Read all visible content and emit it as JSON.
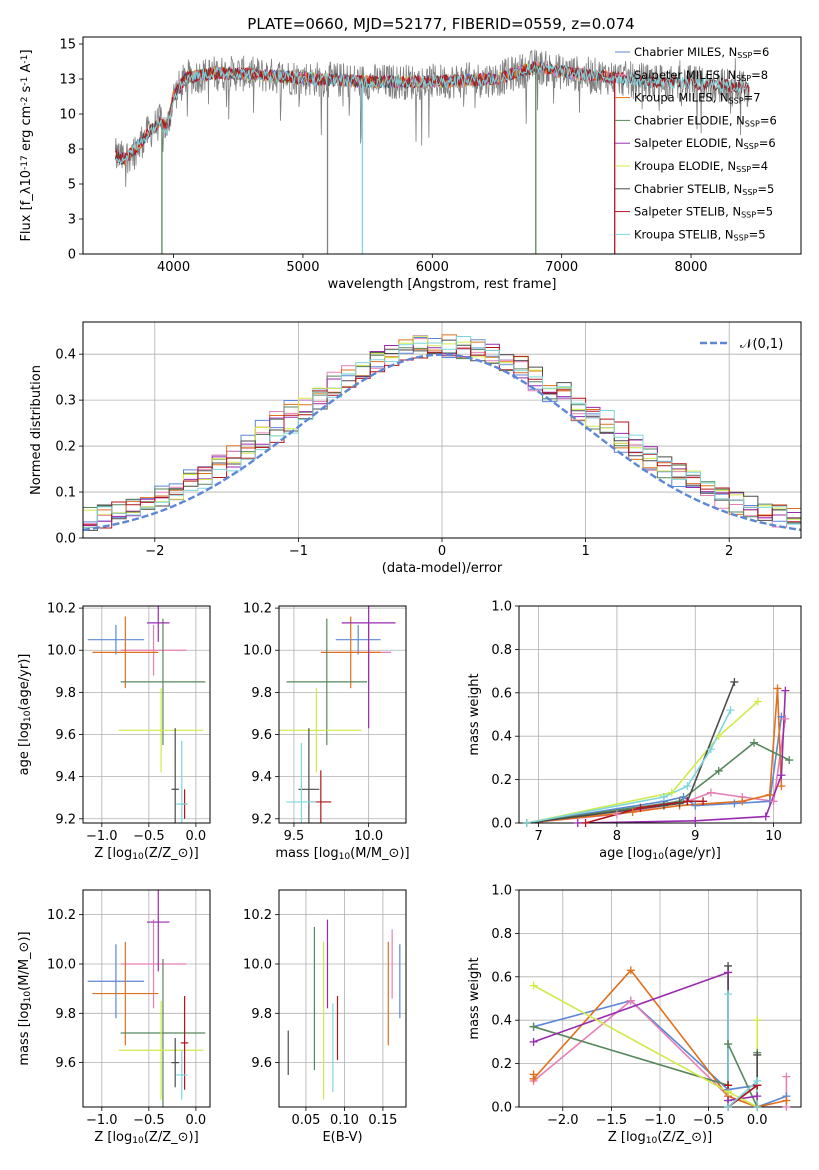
{
  "figure": {
    "title": "PLATE=0660, MJD=52177, FIBERID=0559, z=0.074"
  },
  "colors": {
    "Chabrier MILES": "#5b87d6",
    "Salpeter MILES": "#e77fb5",
    "Kroupa MILES": "#e0701c",
    "Chabrier ELODIE": "#57875c",
    "Salpeter ELODIE": "#9a2bb0",
    "Kroupa ELODIE": "#d0ea4a",
    "Chabrier STELIB": "#4c4c4c",
    "Salpeter STELIB": "#b5141d",
    "Kroupa STELIB": "#7ed6dc",
    "data_spectrum": "#808080"
  },
  "chart_data": [
    {
      "id": "spectrum",
      "type": "line",
      "xlabel": "wavelength [Angstrom, rest frame]",
      "ylabel": "Flux [f$_\\lambda$10$^{-17}$ erg cm$^{-2}$ s$^{-1}$ A$^{-1}$]",
      "xlim": [
        3300,
        8850
      ],
      "ylim": [
        0,
        15.5
      ],
      "xticks": [
        4000,
        5000,
        6000,
        7000,
        8000
      ],
      "yticks": [
        0.0,
        2.5,
        5.0,
        7.5,
        10.0,
        12.5,
        15.0
      ],
      "grid": false,
      "legend_position": "top-right",
      "legend": [
        {
          "model": "Chabrier MILES",
          "label": "Chabrier MILES, N$_{SSP}$=6"
        },
        {
          "model": "Salpeter MILES",
          "label": "Salpeter MILES, N$_{SSP}$=8"
        },
        {
          "model": "Kroupa MILES",
          "label": "Kroupa MILES, N$_{SSP}$=7"
        },
        {
          "model": "Chabrier ELODIE",
          "label": "Chabrier ELODIE, N$_{SSP}$=6"
        },
        {
          "model": "Salpeter ELODIE",
          "label": "Salpeter ELODIE, N$_{SSP}$=6"
        },
        {
          "model": "Kroupa ELODIE",
          "label": "Kroupa ELODIE, N$_{SSP}$=4"
        },
        {
          "model": "Chabrier STELIB",
          "label": "Chabrier STELIB, N$_{SSP}$=5"
        },
        {
          "model": "Salpeter STELIB",
          "label": "Salpeter STELIB, N$_{SSP}$=5"
        },
        {
          "model": "Kroupa STELIB",
          "label": "Kroupa STELIB, N$_{SSP}$=5"
        }
      ],
      "continuum": [
        [
          3550,
          7.0
        ],
        [
          3620,
          6.8
        ],
        [
          3700,
          7.5
        ],
        [
          3800,
          8.6
        ],
        [
          3900,
          9.5
        ],
        [
          3950,
          8.9
        ],
        [
          4000,
          11.3
        ],
        [
          4100,
          12.6
        ],
        [
          4300,
          12.9
        ],
        [
          4500,
          12.9
        ],
        [
          4800,
          12.7
        ],
        [
          5100,
          12.5
        ],
        [
          5500,
          12.3
        ],
        [
          6000,
          12.3
        ],
        [
          6500,
          12.5
        ],
        [
          6800,
          13.4
        ],
        [
          7000,
          13.0
        ],
        [
          7400,
          12.6
        ],
        [
          7700,
          12.3
        ],
        [
          8000,
          12.2
        ],
        [
          8300,
          12.0
        ],
        [
          8450,
          11.8
        ]
      ],
      "model_ranges": [
        {
          "model": "Kroupa ELODIE",
          "x": [
            3900,
            6800
          ]
        },
        {
          "model": "Salpeter ELODIE",
          "x": [
            3900,
            6800
          ]
        },
        {
          "model": "Chabrier ELODIE",
          "x": [
            3900,
            6800
          ]
        },
        {
          "model": "Chabrier MILES",
          "x": [
            3550,
            7400
          ]
        },
        {
          "model": "Salpeter MILES",
          "x": [
            3550,
            7400
          ]
        },
        {
          "model": "Kroupa MILES",
          "x": [
            3550,
            7400
          ]
        },
        {
          "model": "Chabrier STELIB",
          "x": [
            3550,
            8450
          ]
        },
        {
          "model": "Salpeter STELIB",
          "x": [
            3550,
            8450
          ]
        },
        {
          "model": "Kroupa STELIB",
          "x": [
            3550,
            8450
          ]
        }
      ],
      "drops": [
        {
          "x": 3910,
          "color": "Chabrier ELODIE"
        },
        {
          "x": 5190,
          "color": "data_spectrum"
        },
        {
          "x": 5460,
          "color": "Kroupa STELIB"
        },
        {
          "x": 6800,
          "color": "Chabrier ELODIE"
        },
        {
          "x": 7410,
          "color": "Salpeter STELIB"
        }
      ]
    },
    {
      "id": "residuals",
      "type": "histogram",
      "xlabel": "(data-model)/error",
      "ylabel": "Normed distribution",
      "xlim": [
        -2.5,
        2.5
      ],
      "ylim": [
        0,
        0.47
      ],
      "xticks": [
        -2,
        -1,
        0,
        1,
        2
      ],
      "yticks": [
        0.0,
        0.1,
        0.2,
        0.3,
        0.4
      ],
      "grid": true,
      "legend_position": "top-right",
      "normal_label": "$\\mathcal{N}(0,1)$",
      "normal_color": "#5b87d6",
      "bins": [
        -2.5,
        -2.4,
        -2.3,
        -2.2,
        -2.1,
        -2.0,
        -1.9,
        -1.8,
        -1.7,
        -1.6,
        -1.5,
        -1.4,
        -1.3,
        -1.2,
        -1.1,
        -1.0,
        -0.9,
        -0.8,
        -0.7,
        -0.6,
        -0.5,
        -0.4,
        -0.3,
        -0.2,
        -0.1,
        0.0,
        0.1,
        0.2,
        0.3,
        0.4,
        0.5,
        0.6,
        0.7,
        0.8,
        0.9,
        1.0,
        1.1,
        1.2,
        1.3,
        1.4,
        1.5,
        1.6,
        1.7,
        1.8,
        1.9,
        2.0,
        2.1,
        2.2,
        2.3,
        2.4,
        2.5
      ],
      "amplitude_scale": 1.0
    },
    {
      "id": "age-vs-Z",
      "type": "errorbar",
      "xlabel": "Z [log$_{10}$(Z/Z$_\\odot$)]",
      "ylabel": "age  [log$_{10}$(age/yr)]",
      "xlim": [
        -1.2,
        0.15
      ],
      "ylim": [
        9.18,
        10.21
      ],
      "xticks": [
        -1.0,
        -0.5,
        0.0
      ],
      "yticks": [
        9.2,
        9.4,
        9.6,
        9.8,
        10.0,
        10.2
      ],
      "grid": true,
      "points": [
        {
          "model": "Chabrier MILES",
          "x": -0.85,
          "xerr": 0.3,
          "y": 10.05,
          "yerr": 0.07
        },
        {
          "model": "Salpeter MILES",
          "x": -0.45,
          "xerr": 0.35,
          "y": 10.0,
          "yerr": 0.12
        },
        {
          "model": "Kroupa MILES",
          "x": -0.75,
          "xerr": 0.35,
          "y": 9.99,
          "yerr": 0.17
        },
        {
          "model": "Chabrier ELODIE",
          "x": -0.35,
          "xerr": 0.45,
          "y": 9.85,
          "yerr": 0.3
        },
        {
          "model": "Salpeter ELODIE",
          "x": -0.4,
          "xerr": 0.12,
          "y": 10.13,
          "yerr": 0.09
        },
        {
          "model": "Kroupa ELODIE",
          "x": -0.37,
          "xerr": 0.45,
          "y": 9.62,
          "yerr": 0.2
        },
        {
          "model": "Chabrier STELIB",
          "x": -0.22,
          "xerr": 0.04,
          "y": 9.34,
          "yerr": 0.29
        },
        {
          "model": "Salpeter STELIB",
          "x": -0.12,
          "xerr": 0.03,
          "y": 9.27,
          "yerr": 0.07
        },
        {
          "model": "Kroupa STELIB",
          "x": -0.15,
          "xerr": 0.06,
          "y": 9.27,
          "yerr": 0.3
        }
      ]
    },
    {
      "id": "age-vs-mass",
      "type": "errorbar",
      "xlabel": "mass [log$_{10}$(M/M$_\\odot$)]",
      "ylabel": "",
      "xlim": [
        9.4,
        10.25
      ],
      "ylim": [
        9.18,
        10.21
      ],
      "xticks": [
        9.5,
        10.0
      ],
      "yticks": [
        9.2,
        9.4,
        9.6,
        9.8,
        10.0,
        10.2
      ],
      "grid": true,
      "points": [
        {
          "model": "Chabrier MILES",
          "x": 9.93,
          "xerr": 0.15,
          "y": 10.05,
          "yerr": 0.07
        },
        {
          "model": "Salpeter MILES",
          "x": 10.0,
          "xerr": 0.15,
          "y": 9.99,
          "yerr": 0.14
        },
        {
          "model": "Kroupa MILES",
          "x": 9.88,
          "xerr": 0.2,
          "y": 9.99,
          "yerr": 0.17
        },
        {
          "model": "Chabrier ELODIE",
          "x": 9.72,
          "xerr": 0.27,
          "y": 9.85,
          "yerr": 0.3
        },
        {
          "model": "Salpeter ELODIE",
          "x": 10.0,
          "xerr": 0.18,
          "y": 10.13,
          "yerr": 0.5
        },
        {
          "model": "Kroupa ELODIE",
          "x": 9.65,
          "xerr": 0.3,
          "y": 9.62,
          "yerr": 0.2
        },
        {
          "model": "Chabrier STELIB",
          "x": 9.6,
          "xerr": 0.07,
          "y": 9.34,
          "yerr": 0.29
        },
        {
          "model": "Salpeter STELIB",
          "x": 9.68,
          "xerr": 0.07,
          "y": 9.28,
          "yerr": 0.15
        },
        {
          "model": "Kroupa STELIB",
          "x": 9.55,
          "xerr": 0.1,
          "y": 9.28,
          "yerr": 0.28
        }
      ]
    },
    {
      "id": "weight-vs-age",
      "type": "line",
      "xlabel": "age  [log$_{10}$(age/yr)]",
      "ylabel": "mass weight",
      "xlim": [
        6.75,
        10.35
      ],
      "ylim": [
        0,
        1.0
      ],
      "xticks": [
        7,
        8,
        9,
        10
      ],
      "yticks": [
        0.0,
        0.2,
        0.4,
        0.6,
        0.8,
        1.0
      ],
      "grid": true,
      "series": [
        {
          "model": "Chabrier MILES",
          "x": [
            6.85,
            8.6,
            8.85,
            9.0,
            9.5,
            9.95,
            10.1
          ],
          "y": [
            0.0,
            0.1,
            0.12,
            0.08,
            0.09,
            0.1,
            0.49
          ]
        },
        {
          "model": "Salpeter MILES",
          "x": [
            6.85,
            8.0,
            8.9,
            9.2,
            9.6,
            10.0,
            10.15
          ],
          "y": [
            0.0,
            0.04,
            0.1,
            0.14,
            0.12,
            0.1,
            0.48
          ]
        },
        {
          "model": "Kroupa MILES",
          "x": [
            6.85,
            8.2,
            8.8,
            9.6,
            9.95,
            10.05,
            10.1
          ],
          "y": [
            0.0,
            0.05,
            0.08,
            0.1,
            0.13,
            0.62,
            0.17
          ]
        },
        {
          "model": "Chabrier ELODIE",
          "x": [
            6.85,
            8.8,
            9.3,
            9.75,
            10.2
          ],
          "y": [
            0.0,
            0.1,
            0.24,
            0.37,
            0.29
          ]
        },
        {
          "model": "Salpeter ELODIE",
          "x": [
            7.5,
            9.0,
            9.9,
            10.1,
            10.15
          ],
          "y": [
            0.0,
            0.01,
            0.03,
            0.22,
            0.61
          ]
        },
        {
          "model": "Kroupa ELODIE",
          "x": [
            6.85,
            8.7,
            9.3,
            9.8
          ],
          "y": [
            0.0,
            0.14,
            0.4,
            0.56
          ]
        },
        {
          "model": "Chabrier STELIB",
          "x": [
            6.85,
            8.6,
            8.8,
            8.9,
            9.5
          ],
          "y": [
            0.0,
            0.08,
            0.09,
            0.1,
            0.65
          ]
        },
        {
          "model": "Salpeter STELIB",
          "x": [
            7.6,
            8.3,
            8.9,
            9.1
          ],
          "y": [
            0.0,
            0.07,
            0.1,
            0.1
          ]
        },
        {
          "model": "Kroupa STELIB",
          "x": [
            6.85,
            8.6,
            8.9,
            9.2,
            9.45
          ],
          "y": [
            0.0,
            0.12,
            0.17,
            0.34,
            0.52
          ]
        }
      ]
    },
    {
      "id": "mass-vs-Z",
      "type": "errorbar",
      "xlabel": "Z [log$_{10}$(Z/Z$_\\odot$)]",
      "ylabel": "mass [log$_{10}$(M/M$_\\odot$)]",
      "xlim": [
        -1.2,
        0.15
      ],
      "ylim": [
        9.42,
        10.3
      ],
      "xticks": [
        -1.0,
        -0.5,
        0.0
      ],
      "yticks": [
        9.6,
        9.8,
        10.0,
        10.2
      ],
      "grid": true,
      "points": [
        {
          "model": "Chabrier MILES",
          "x": -0.85,
          "xerr": 0.3,
          "y": 9.93,
          "yerr": 0.15
        },
        {
          "model": "Salpeter MILES",
          "x": -0.45,
          "xerr": 0.35,
          "y": 10.0,
          "yerr": 0.18
        },
        {
          "model": "Kroupa MILES",
          "x": -0.75,
          "xerr": 0.35,
          "y": 9.88,
          "yerr": 0.21
        },
        {
          "model": "Chabrier ELODIE",
          "x": -0.35,
          "xerr": 0.45,
          "y": 9.72,
          "yerr": 0.3
        },
        {
          "model": "Salpeter ELODIE",
          "x": -0.4,
          "xerr": 0.12,
          "y": 10.17,
          "yerr": 0.2
        },
        {
          "model": "Kroupa ELODIE",
          "x": -0.37,
          "xerr": 0.45,
          "y": 9.65,
          "yerr": 0.2
        },
        {
          "model": "Chabrier STELIB",
          "x": -0.22,
          "xerr": 0.04,
          "y": 9.6,
          "yerr": 0.1
        },
        {
          "model": "Salpeter STELIB",
          "x": -0.12,
          "xerr": 0.04,
          "y": 9.68,
          "yerr": 0.19
        },
        {
          "model": "Kroupa STELIB",
          "x": -0.15,
          "xerr": 0.06,
          "y": 9.55,
          "yerr": 0.1
        }
      ]
    },
    {
      "id": "mass-vs-EBV",
      "type": "errorbar",
      "xlabel": "E(B-V)",
      "ylabel": "",
      "xlim": [
        0.015,
        0.18
      ],
      "ylim": [
        9.42,
        10.3
      ],
      "xticks": [
        0.05,
        0.1,
        0.15
      ],
      "yticks": [
        9.6,
        9.8,
        10.0,
        10.2
      ],
      "grid": true,
      "points": [
        {
          "model": "Chabrier MILES",
          "x": 0.172,
          "y": 9.93,
          "yerr": 0.15
        },
        {
          "model": "Salpeter MILES",
          "x": 0.162,
          "y": 10.0,
          "yerr": 0.14
        },
        {
          "model": "Kroupa MILES",
          "x": 0.157,
          "y": 9.88,
          "yerr": 0.21
        },
        {
          "model": "Chabrier ELODIE",
          "x": 0.061,
          "y": 9.86,
          "yerr": 0.29
        },
        {
          "model": "Salpeter ELODIE",
          "x": 0.078,
          "y": 10.0,
          "yerr": 0.18
        },
        {
          "model": "Kroupa ELODIE",
          "x": 0.073,
          "y": 9.77,
          "yerr": 0.32
        },
        {
          "model": "Chabrier STELIB",
          "x": 0.027,
          "y": 9.64,
          "yerr": 0.09
        },
        {
          "model": "Salpeter STELIB",
          "x": 0.091,
          "y": 9.74,
          "yerr": 0.13
        },
        {
          "model": "Kroupa STELIB",
          "x": 0.085,
          "y": 9.66,
          "yerr": 0.18
        }
      ]
    },
    {
      "id": "weight-vs-Z",
      "type": "line",
      "xlabel": "Z [log$_{10}$(Z/Z$_\\odot$)]",
      "ylabel": "mass weight",
      "xlim": [
        -2.45,
        0.45
      ],
      "ylim": [
        0,
        1.0
      ],
      "xticks": [
        -2.0,
        -1.5,
        -1.0,
        -0.5,
        0.0
      ],
      "yticks": [
        0.0,
        0.2,
        0.4,
        0.6,
        0.8,
        1.0
      ],
      "grid": true,
      "series": [
        {
          "model": "Chabrier MILES",
          "x": [
            -2.3,
            -1.3,
            -0.3,
            0.0,
            0.0,
            0.3
          ],
          "y": [
            0.37,
            0.49,
            0.08,
            0.1,
            0.0,
            0.05
          ]
        },
        {
          "model": "Salpeter MILES",
          "x": [
            -2.3,
            -1.3,
            -0.3,
            0.0,
            0.3,
            0.3
          ],
          "y": [
            0.12,
            0.49,
            0.05,
            0.0,
            0.0,
            0.14
          ]
        },
        {
          "model": "Kroupa MILES",
          "x": [
            -2.3,
            -2.3,
            -1.3,
            -0.3,
            0.0,
            0.3
          ],
          "y": [
            0.15,
            0.13,
            0.63,
            0.05,
            0.0,
            0.03
          ]
        },
        {
          "model": "Chabrier ELODIE",
          "x": [
            -2.3,
            -0.3,
            -0.3,
            0.0,
            0.0
          ],
          "y": [
            0.37,
            0.1,
            0.29,
            0.0,
            0.25
          ]
        },
        {
          "model": "Salpeter ELODIE",
          "x": [
            -2.3,
            -0.3,
            -0.3,
            0.0
          ],
          "y": [
            0.3,
            0.62,
            0.03,
            0.05
          ]
        },
        {
          "model": "Kroupa ELODIE",
          "x": [
            -2.3,
            -0.3,
            0.0,
            0.0
          ],
          "y": [
            0.56,
            0.07,
            0.0,
            0.4
          ]
        },
        {
          "model": "Chabrier STELIB",
          "x": [
            -0.3,
            -0.3,
            0.0,
            0.0,
            0.0
          ],
          "y": [
            0.65,
            0.0,
            0.1,
            0.0,
            0.24
          ]
        },
        {
          "model": "Salpeter STELIB",
          "x": [
            -0.3,
            -0.3,
            0.0,
            0.0
          ],
          "y": [
            0.1,
            0.0,
            0.1,
            0.0
          ]
        },
        {
          "model": "Kroupa STELIB",
          "x": [
            -0.3,
            -0.3,
            0.0,
            0.0
          ],
          "y": [
            0.52,
            0.0,
            0.12,
            0.0
          ]
        }
      ]
    }
  ]
}
